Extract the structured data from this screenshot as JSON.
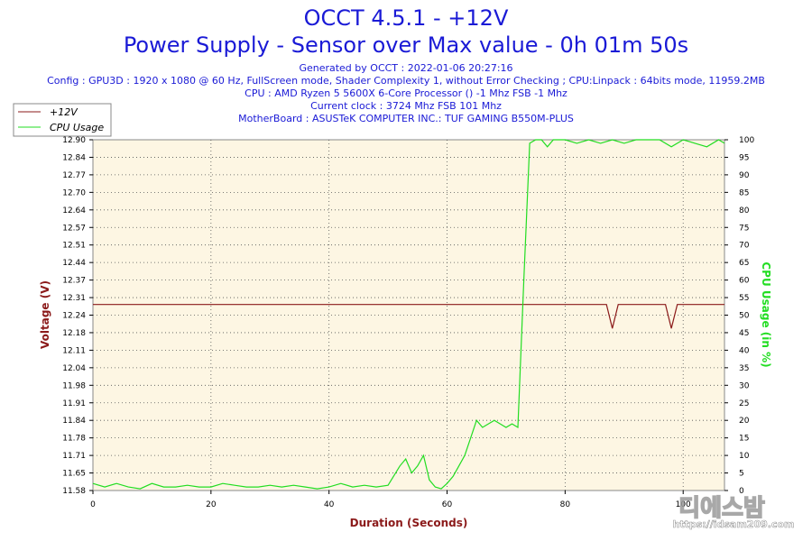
{
  "header": {
    "title": "OCCT 4.5.1 - +12V",
    "subtitle": "Power Supply - Sensor over Max value - 0h 01m 50s",
    "generated": "Generated by OCCT : 2022-01-06 20:27:16",
    "config": "Config : GPU3D : 1920 x 1080 @ 60 Hz, FullScreen mode, Shader Complexity 1, without Error Checking ; CPU:Linpack : 64bits mode, 11959.2MB",
    "cpu": "CPU : AMD Ryzen 5 5600X 6-Core Processor () -1 Mhz FSB -1 Mhz",
    "clock": "Current clock : 3724 Mhz FSB 101 Mhz",
    "motherboard": "MotherBoard : ASUSTeK COMPUTER INC.: TUF GAMING B550M-PLUS"
  },
  "watermark": {
    "brand": "디에스밤",
    "url": "https://idsam209.com"
  },
  "colors": {
    "voltage": "#8b1a1a",
    "cpu": "#22dd22",
    "plot_bg": "#fdf6e3",
    "title": "#1a1ad6"
  },
  "chart_data": {
    "type": "line",
    "title": "OCCT 4.5.1 - +12V",
    "xlabel": "Duration (Seconds)",
    "ylabel": "Voltage (V)",
    "y2label": "CPU Usage (in %)",
    "xlim": [
      0,
      107
    ],
    "ylim": [
      11.58,
      12.9
    ],
    "y2lim": [
      0,
      100
    ],
    "x_ticks": [
      0,
      20,
      40,
      60,
      80,
      100
    ],
    "y_ticks": [
      "11.58",
      "11.65",
      "11.71",
      "11.78",
      "11.84",
      "11.91",
      "11.98",
      "12.04",
      "12.11",
      "12.18",
      "12.24",
      "12.31",
      "12.37",
      "12.44",
      "12.51",
      "12.57",
      "12.64",
      "12.70",
      "12.77",
      "12.84",
      "12.90"
    ],
    "y2_ticks": [
      0,
      5,
      10,
      15,
      20,
      25,
      30,
      35,
      40,
      45,
      50,
      55,
      60,
      65,
      70,
      75,
      80,
      85,
      90,
      95,
      100
    ],
    "grid": true,
    "legend_position": "top-left",
    "series": [
      {
        "name": "+12V",
        "axis": "left",
        "color": "#8b1a1a",
        "x": [
          0,
          87,
          88,
          89,
          97,
          98,
          99,
          107
        ],
        "y": [
          12.28,
          12.28,
          12.19,
          12.28,
          12.28,
          12.19,
          12.28,
          12.28
        ]
      },
      {
        "name": "CPU Usage",
        "axis": "right",
        "color": "#22dd22",
        "x": [
          0,
          2,
          4,
          6,
          8,
          10,
          12,
          14,
          16,
          18,
          20,
          22,
          24,
          26,
          28,
          30,
          32,
          34,
          36,
          38,
          40,
          42,
          44,
          46,
          48,
          50,
          52,
          53,
          54,
          55,
          56,
          57,
          58,
          59,
          60,
          61,
          62,
          63,
          64,
          65,
          66,
          67,
          68,
          69,
          70,
          71,
          72,
          73,
          74,
          75,
          76,
          77,
          78,
          80,
          82,
          84,
          86,
          88,
          90,
          92,
          94,
          96,
          98,
          100,
          102,
          104,
          106,
          107
        ],
        "y": [
          2,
          1,
          2,
          1,
          0.5,
          2,
          1,
          1,
          1.5,
          1,
          1,
          2,
          1.5,
          1,
          1,
          1.5,
          1,
          1.5,
          1,
          0.5,
          1,
          2,
          1,
          1.5,
          1,
          1.5,
          7,
          9,
          5,
          7,
          10,
          3,
          1,
          0.5,
          2,
          4,
          7,
          10,
          15,
          20,
          18,
          19,
          20,
          19,
          18,
          19,
          18,
          60,
          99,
          100,
          100,
          98,
          100,
          100,
          99,
          100,
          99,
          100,
          99,
          100,
          100,
          100,
          98,
          100,
          99,
          98,
          100,
          99
        ]
      }
    ]
  }
}
